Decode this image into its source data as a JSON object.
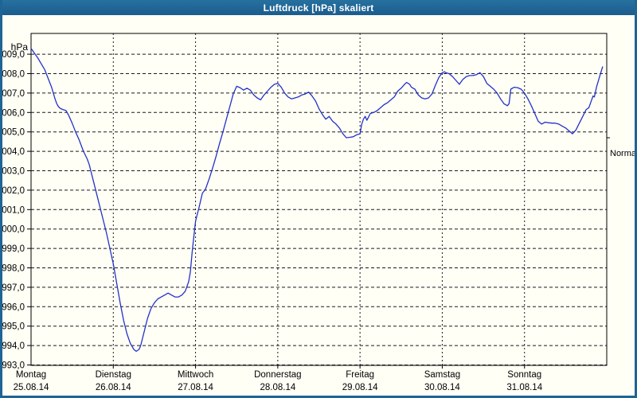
{
  "window": {
    "title": "Luftdruck [hPa] skaliert"
  },
  "colors": {
    "titlebar": "#1e6494",
    "frame": "#1e6494",
    "background": "#fffff6",
    "grid": "#1a1a1a",
    "axis": "#000000",
    "line": "#2232c8",
    "text": "#000000",
    "title_text": "#ffffff"
  },
  "chart_data": {
    "type": "line",
    "title": "Luftdruck [hPa] skaliert",
    "grid": "dashed",
    "legend_position": "none",
    "ylim": [
      993,
      1010
    ],
    "xlabel": "",
    "ylabel": "hPa",
    "y_axis": {
      "unit_label": "hPa",
      "min": 993,
      "max": 1009,
      "step": 1,
      "tick_labels": [
        "1009,0",
        "1008,0",
        "1007,0",
        "1006,0",
        "1005,0",
        "1004,0",
        "1003,0",
        "1002,0",
        "1001,0",
        "1000,0",
        "999,0",
        "998,0",
        "997,0",
        "996,0",
        "995,0",
        "994,0",
        "993,0"
      ]
    },
    "x_axis": {
      "hours_total": 168,
      "hours_per_day": 24,
      "days": [
        {
          "name": "Montag",
          "date": "25.08.14"
        },
        {
          "name": "Dienstag",
          "date": "26.08.14"
        },
        {
          "name": "Mittwoch",
          "date": "27.08.14"
        },
        {
          "name": "Donnerstag",
          "date": "28.08.14"
        },
        {
          "name": "Freitag",
          "date": "29.08.14"
        },
        {
          "name": "Samstag",
          "date": "30.08.14"
        },
        {
          "name": "Sonntag",
          "date": "31.08.14"
        }
      ]
    },
    "normal_marker": {
      "label": "Normal",
      "value": 1004.7
    },
    "series": [
      {
        "name": "Luftdruck",
        "color": "#2232c8",
        "points": [
          [
            0,
            1009.3
          ],
          [
            1,
            1009.05
          ],
          [
            2,
            1008.8
          ],
          [
            3,
            1008.5
          ],
          [
            4,
            1008.2
          ],
          [
            5,
            1007.75
          ],
          [
            6,
            1007.3
          ],
          [
            7,
            1006.7
          ],
          [
            7.5,
            1006.45
          ],
          [
            8,
            1006.3
          ],
          [
            8.6,
            1006.2
          ],
          [
            9.3,
            1006.15
          ],
          [
            10.2,
            1006.1
          ],
          [
            11,
            1005.85
          ],
          [
            12,
            1005.45
          ],
          [
            13,
            1005.0
          ],
          [
            14,
            1004.6
          ],
          [
            15.3,
            1004.0
          ],
          [
            16.4,
            1003.6
          ],
          [
            17,
            1003.3
          ],
          [
            18,
            1002.6
          ],
          [
            19,
            1001.9
          ],
          [
            20,
            1001.2
          ],
          [
            21,
            1000.5
          ],
          [
            22,
            999.8
          ],
          [
            23,
            999.0
          ],
          [
            24,
            998.2
          ],
          [
            25,
            997.2
          ],
          [
            26,
            996.2
          ],
          [
            27,
            995.3
          ],
          [
            28,
            994.6
          ],
          [
            29,
            994.1
          ],
          [
            30,
            993.8
          ],
          [
            30.7,
            993.7
          ],
          [
            31.5,
            993.8
          ],
          [
            32,
            994.0
          ],
          [
            33,
            994.7
          ],
          [
            34,
            995.4
          ],
          [
            35,
            995.9
          ],
          [
            36,
            996.2
          ],
          [
            37,
            996.4
          ],
          [
            38,
            996.5
          ],
          [
            39,
            996.6
          ],
          [
            40,
            996.7
          ],
          [
            41,
            996.6
          ],
          [
            42,
            996.5
          ],
          [
            43,
            996.5
          ],
          [
            44,
            996.6
          ],
          [
            45,
            996.8
          ],
          [
            46,
            997.3
          ],
          [
            46.5,
            997.8
          ],
          [
            47,
            998.8
          ],
          [
            47.5,
            999.6
          ],
          [
            48,
            1000.4
          ],
          [
            49,
            1001.1
          ],
          [
            50,
            1001.85
          ],
          [
            50.7,
            1002.0
          ],
          [
            51,
            1002.1
          ],
          [
            52,
            1002.6
          ],
          [
            53,
            1003.15
          ],
          [
            54,
            1003.75
          ],
          [
            55,
            1004.4
          ],
          [
            56,
            1005.0
          ],
          [
            57,
            1005.65
          ],
          [
            58,
            1006.3
          ],
          [
            59,
            1006.95
          ],
          [
            60,
            1007.35
          ],
          [
            61,
            1007.28
          ],
          [
            62,
            1007.15
          ],
          [
            63,
            1007.25
          ],
          [
            64,
            1007.15
          ],
          [
            65,
            1006.9
          ],
          [
            66,
            1006.75
          ],
          [
            67,
            1006.65
          ],
          [
            68,
            1006.9
          ],
          [
            69,
            1007.1
          ],
          [
            70,
            1007.3
          ],
          [
            71,
            1007.45
          ],
          [
            72,
            1007.5
          ],
          [
            73,
            1007.3
          ],
          [
            74,
            1007.0
          ],
          [
            75,
            1006.8
          ],
          [
            76,
            1006.7
          ],
          [
            77,
            1006.75
          ],
          [
            78,
            1006.8
          ],
          [
            79,
            1006.9
          ],
          [
            80,
            1006.95
          ],
          [
            81,
            1007.05
          ],
          [
            82,
            1006.85
          ],
          [
            83,
            1006.6
          ],
          [
            84,
            1006.2
          ],
          [
            85,
            1005.9
          ],
          [
            86,
            1005.65
          ],
          [
            87,
            1005.8
          ],
          [
            88,
            1005.55
          ],
          [
            89,
            1005.4
          ],
          [
            90,
            1005.2
          ],
          [
            91,
            1004.9
          ],
          [
            92,
            1004.7
          ],
          [
            93,
            1004.72
          ],
          [
            94,
            1004.75
          ],
          [
            95,
            1004.85
          ],
          [
            96,
            1004.9
          ],
          [
            96.5,
            1005.4
          ],
          [
            97,
            1005.65
          ],
          [
            97.5,
            1005.8
          ],
          [
            98,
            1005.6
          ],
          [
            99,
            1005.95
          ],
          [
            100,
            1006.0
          ],
          [
            101,
            1006.1
          ],
          [
            102,
            1006.25
          ],
          [
            103,
            1006.4
          ],
          [
            104,
            1006.5
          ],
          [
            105,
            1006.65
          ],
          [
            106,
            1006.8
          ],
          [
            107,
            1007.1
          ],
          [
            108,
            1007.25
          ],
          [
            109,
            1007.45
          ],
          [
            109.6,
            1007.55
          ],
          [
            110.5,
            1007.45
          ],
          [
            111,
            1007.3
          ],
          [
            112,
            1007.2
          ],
          [
            113,
            1006.9
          ],
          [
            114,
            1006.75
          ],
          [
            115,
            1006.7
          ],
          [
            116,
            1006.75
          ],
          [
            117,
            1006.95
          ],
          [
            118,
            1007.4
          ],
          [
            119,
            1007.8
          ],
          [
            120,
            1008.05
          ],
          [
            120.7,
            1008.1
          ],
          [
            121,
            1008.05
          ],
          [
            122,
            1008.0
          ],
          [
            123,
            1007.85
          ],
          [
            124,
            1007.65
          ],
          [
            125,
            1007.45
          ],
          [
            126,
            1007.7
          ],
          [
            127,
            1007.85
          ],
          [
            128,
            1007.9
          ],
          [
            129,
            1007.9
          ],
          [
            130,
            1007.95
          ],
          [
            131,
            1008.05
          ],
          [
            132,
            1007.85
          ],
          [
            133,
            1007.5
          ],
          [
            134,
            1007.35
          ],
          [
            135,
            1007.2
          ],
          [
            136,
            1007.0
          ],
          [
            137,
            1006.7
          ],
          [
            138,
            1006.45
          ],
          [
            139,
            1006.35
          ],
          [
            139.5,
            1006.45
          ],
          [
            140,
            1007.2
          ],
          [
            141,
            1007.3
          ],
          [
            142,
            1007.28
          ],
          [
            143,
            1007.2
          ],
          [
            144,
            1007.0
          ],
          [
            145,
            1006.7
          ],
          [
            146,
            1006.35
          ],
          [
            147,
            1005.95
          ],
          [
            148,
            1005.55
          ],
          [
            149,
            1005.4
          ],
          [
            150,
            1005.5
          ],
          [
            151,
            1005.47
          ],
          [
            152,
            1005.45
          ],
          [
            153,
            1005.45
          ],
          [
            154,
            1005.4
          ],
          [
            155,
            1005.3
          ],
          [
            156,
            1005.2
          ],
          [
            157,
            1005.05
          ],
          [
            158,
            1004.9
          ],
          [
            159,
            1005.1
          ],
          [
            160,
            1005.45
          ],
          [
            161,
            1005.8
          ],
          [
            162,
            1006.15
          ],
          [
            162.8,
            1006.25
          ],
          [
            163.5,
            1006.6
          ],
          [
            164,
            1006.85
          ],
          [
            164.4,
            1006.8
          ],
          [
            165,
            1007.3
          ],
          [
            166,
            1007.9
          ],
          [
            166.8,
            1008.35
          ]
        ]
      }
    ]
  }
}
